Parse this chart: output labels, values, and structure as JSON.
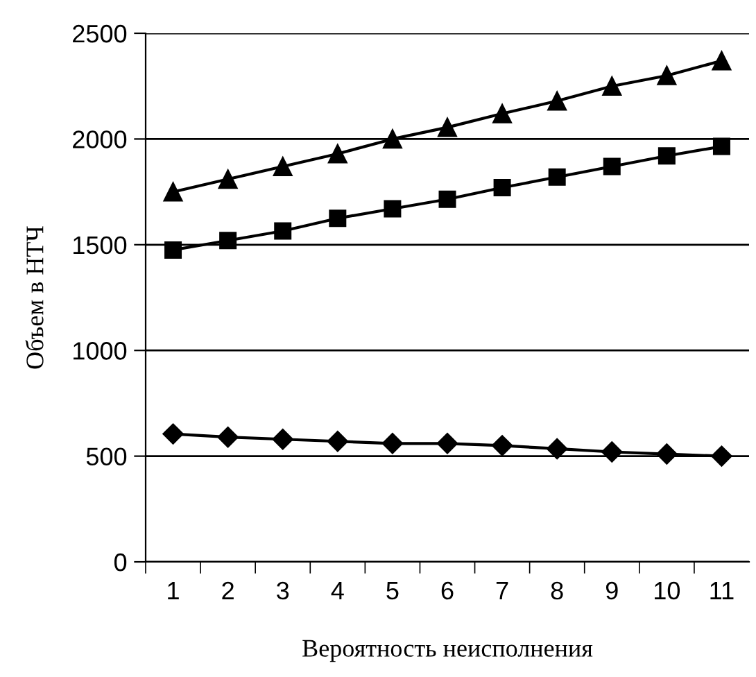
{
  "chart_data": {
    "type": "line",
    "xlabel": "Вероятность неисполнения",
    "ylabel": "Объем в НТЧ",
    "categories": [
      "1",
      "2",
      "3",
      "4",
      "5",
      "6",
      "7",
      "8",
      "9",
      "10",
      "11"
    ],
    "series": [
      {
        "color": "#000000",
        "marker": "triangle",
        "values": [
          1750,
          1810,
          1870,
          1930,
          2000,
          2055,
          2120,
          2180,
          2250,
          2300,
          2370
        ]
      },
      {
        "color": "#000000",
        "marker": "square",
        "values": [
          1475,
          1520,
          1565,
          1625,
          1670,
          1715,
          1770,
          1820,
          1870,
          1920,
          1965
        ]
      },
      {
        "color": "#000000",
        "marker": "diamond",
        "values": [
          605,
          590,
          580,
          570,
          560,
          560,
          550,
          535,
          520,
          510,
          500
        ]
      }
    ],
    "ylim": [
      0,
      2500
    ],
    "yticks": [
      0,
      500,
      1000,
      1500,
      2000,
      2500
    ],
    "grid": "y",
    "line_style": "solid"
  }
}
